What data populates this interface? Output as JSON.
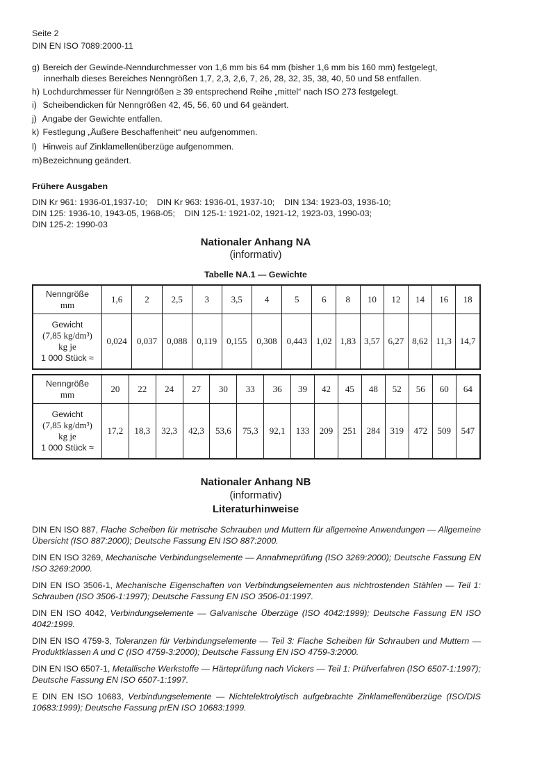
{
  "header": {
    "page": "Seite 2",
    "doc_id": "DIN EN ISO 7089:2000-11"
  },
  "changes": [
    {
      "label": "g)",
      "text": "Bereich der Gewinde-Nenndurchmesser von 1,6 mm bis 64 mm (bisher 1,6 mm bis 160 mm) festgelegt,",
      "text2": "innerhalb dieses Bereiches Nenngrößen 1,7, 2,3, 2,6, 7, 26, 28, 32, 35, 38, 40, 50 und 58 entfallen."
    },
    {
      "label": "h)",
      "text": "Lochdurchmesser für Nenngrößen ≥ 39 entsprechend Reihe „mittel“ nach ISO 273 festgelegt."
    },
    {
      "label": "i)",
      "text": "Scheibendicken für Nenngrößen 42, 45, 56, 60 und 64 geändert."
    },
    {
      "label": "j)",
      "text": "Angabe der Gewichte entfallen."
    },
    {
      "label": "k)",
      "text": "Festlegung „Äußere Beschaffenheit“ neu aufgenommen."
    },
    {
      "label": "l)",
      "text": "Hinweis auf Zinklamellenüberzüge aufgenommen."
    },
    {
      "label": "m)",
      "text": "Bezeichnung geändert."
    }
  ],
  "previous": {
    "title": "Frühere Ausgaben",
    "lines": [
      "DIN Kr 961: 1936-01,1937-10;    DIN Kr 963: 1936-01, 1937-10;    DIN 134: 1923-03, 1936-10;",
      "DIN 125: 1936-10, 1943-05, 1968-05;    DIN 125-1: 1921-02, 1921-12, 1923-03, 1990-03;",
      "DIN 125-2: 1990-03"
    ]
  },
  "annex_na": {
    "title": "Nationaler Anhang NA",
    "subtitle": "(informativ)",
    "table_caption": "Tabelle NA.1 — Gewichte"
  },
  "table": {
    "row1_label": "Nenngröße",
    "row1_unit": "mm",
    "row2_label": [
      "Gewicht",
      "(7,85 kg/dm³)",
      "kg je",
      "1 000 Stück ≈"
    ],
    "part1": {
      "sizes": [
        "1,6",
        "2",
        "2,5",
        "3",
        "3,5",
        "4",
        "5",
        "6",
        "8",
        "10",
        "12",
        "14",
        "16",
        "18"
      ],
      "weights": [
        "0,024",
        "0,037",
        "0,088",
        "0,119",
        "0,155",
        "0,308",
        "0,443",
        "1,02",
        "1,83",
        "3,57",
        "6,27",
        "8,62",
        "11,3",
        "14,7"
      ]
    },
    "part2": {
      "sizes": [
        "20",
        "22",
        "24",
        "27",
        "30",
        "33",
        "36",
        "39",
        "42",
        "45",
        "48",
        "52",
        "56",
        "60",
        "64"
      ],
      "weights": [
        "17,2",
        "18,3",
        "32,3",
        "42,3",
        "53,6",
        "75,3",
        "92,1",
        "133",
        "209",
        "251",
        "284",
        "319",
        "472",
        "509",
        "547"
      ]
    }
  },
  "annex_nb": {
    "title": "Nationaler Anhang NB",
    "subtitle": "(informativ)",
    "heading": "Literaturhinweise"
  },
  "references": [
    {
      "id": "DIN EN ISO 887,",
      "text": "Flache Scheiben für metrische Schrauben und Muttern für allgemeine Anwendungen — Allgemeine Übersicht (ISO 887:2000); Deutsche Fassung EN ISO 887:2000."
    },
    {
      "id": "DIN EN ISO 3269,",
      "text": "Mechanische Verbindungselemente — Annahmeprüfung (ISO 3269:2000); Deutsche Fassung EN ISO 3269:2000."
    },
    {
      "id": "DIN EN ISO 3506-1,",
      "text": "Mechanische Eigenschaften von Verbindungselementen aus nichtrostenden Stählen — Teil 1: Schrauben (ISO 3506-1:1997); Deutsche Fassung EN ISO 3506-01:1997."
    },
    {
      "id": "DIN EN ISO 4042,",
      "text": "Verbindungselemente — Galvanische Überzüge (ISO 4042:1999); Deutsche Fassung EN ISO 4042:1999."
    },
    {
      "id": "DIN EN ISO 4759-3,",
      "text": "Toleranzen für Verbindungselemente — Teil 3: Flache Scheiben für Schrauben und Muttern — Produktklassen A und C (ISO 4759-3:2000); Deutsche Fassung EN ISO 4759-3:2000."
    },
    {
      "id": "DIN EN ISO 6507-1,",
      "text": "Metallische Werkstoffe — Härteprüfung nach Vickers — Teil 1: Prüfverfahren (ISO 6507-1:1997); Deutsche Fassung EN ISO 6507-1:1997."
    },
    {
      "id": "E DIN EN ISO 10683,",
      "text": "Verbindungselemente — Nichtelektrolytisch aufgebrachte Zinklamellenüberzüge (ISO/DIS 10683:1999); Deutsche Fassung prEN ISO 10683:1999."
    }
  ]
}
